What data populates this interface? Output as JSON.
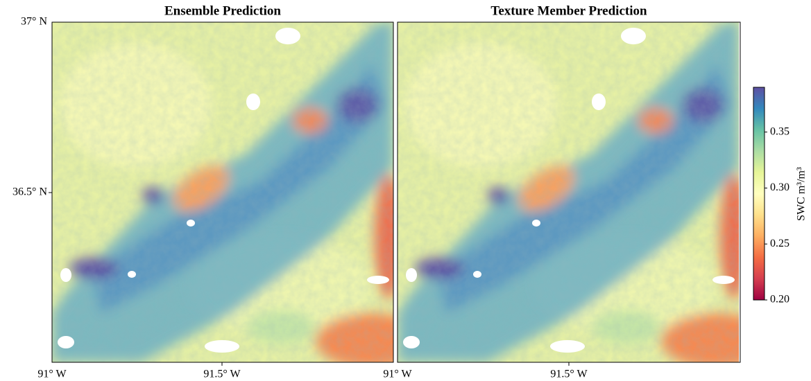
{
  "panels": [
    {
      "title": "Ensemble Prediction",
      "x_tick_labels": [
        "91° W",
        "91.5° W"
      ],
      "y_tick_labels": [
        "37° N",
        "36.5° N"
      ]
    },
    {
      "title": "Texture Member Prediction",
      "x_tick_labels": [
        "91° W",
        "91.5° W"
      ]
    }
  ],
  "colorbar": {
    "label": "SWC m³/m³",
    "lim": [
      0.2,
      0.39
    ],
    "ticks": [
      {
        "value": 0.2,
        "label": "0.20"
      },
      0.25,
      {
        "value": 0.3,
        "label": "0.30"
      },
      0.35
    ]
  }
}
